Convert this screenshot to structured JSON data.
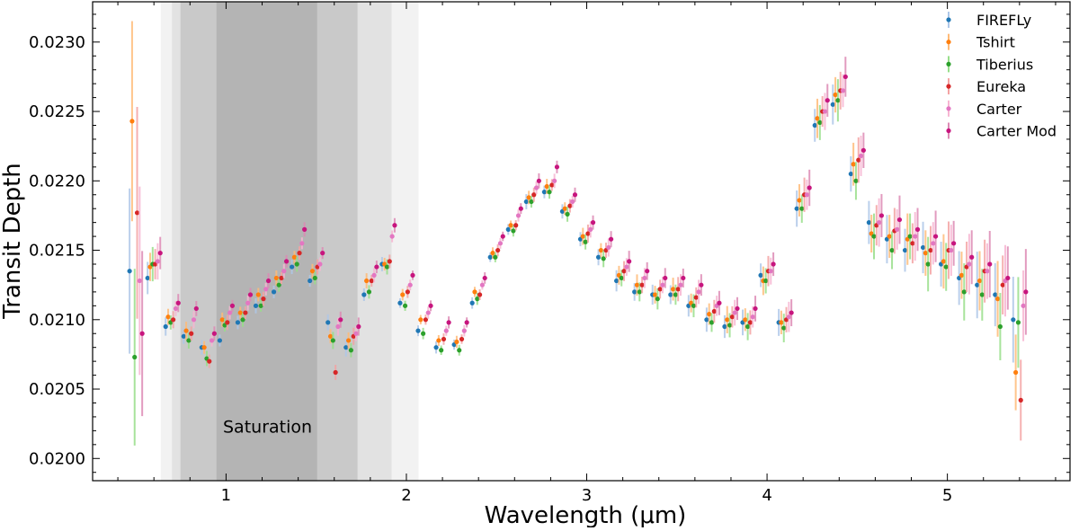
{
  "chart_data": {
    "type": "scatter",
    "title": "",
    "xlabel": "Wavelength (μm)",
    "ylabel": "Transit Depth",
    "xlim": [
      0.26,
      5.68
    ],
    "ylim": [
      0.01984,
      0.02329
    ],
    "xticks": [
      1,
      2,
      3,
      4,
      5
    ],
    "xtick_labels": [
      "1",
      "2",
      "3",
      "4",
      "5"
    ],
    "yticks": [
      0.02,
      0.0205,
      0.021,
      0.0215,
      0.022,
      0.0225,
      0.023
    ],
    "ytick_labels": [
      "0.0200",
      "0.0205",
      "0.0210",
      "0.0215",
      "0.0220",
      "0.0225",
      "0.0230"
    ],
    "grid": false,
    "legend_position": "top-right",
    "annotation": {
      "text": "Saturation",
      "x": 1.23,
      "y": 0.02023
    },
    "shaded_regions": [
      {
        "x0": 0.638,
        "x1": 2.068,
        "color": "#f2f2f2"
      },
      {
        "x0": 0.7,
        "x1": 1.918,
        "color": "#e2e2e2"
      },
      {
        "x0": 0.747,
        "x1": 1.729,
        "color": "#c9c9c9"
      },
      {
        "x0": 0.947,
        "x1": 1.505,
        "color": "#b4b4b4"
      }
    ],
    "x": [
      0.5,
      0.6,
      0.7,
      0.8,
      0.9,
      1.0,
      1.1,
      1.2,
      1.3,
      1.4,
      1.5,
      1.6,
      1.7,
      1.8,
      1.9,
      2.0,
      2.1,
      2.2,
      2.3,
      2.4,
      2.5,
      2.6,
      2.7,
      2.8,
      2.9,
      3.0,
      3.1,
      3.2,
      3.3,
      3.4,
      3.5,
      3.6,
      3.7,
      3.8,
      3.9,
      4.0,
      4.1,
      4.2,
      4.3,
      4.4,
      4.5,
      4.6,
      4.7,
      4.8,
      4.9,
      5.0,
      5.1,
      5.2,
      5.3,
      5.4
    ],
    "yerr": [
      0.0007,
      0.00012,
      6e-05,
      6e-05,
      5e-05,
      5e-05,
      5e-05,
      5e-05,
      5e-05,
      5e-05,
      5e-05,
      6e-05,
      6e-05,
      5e-05,
      5e-05,
      4e-05,
      4e-05,
      4e-05,
      4e-05,
      4e-05,
      4e-05,
      4e-05,
      5e-05,
      5e-05,
      5e-05,
      6e-05,
      6e-05,
      7e-05,
      7e-05,
      7e-05,
      8e-05,
      8e-05,
      8e-05,
      9e-05,
      9e-05,
      0.0001,
      0.0001,
      0.00012,
      0.00013,
      0.00014,
      0.00015,
      0.00016,
      0.00016,
      0.00017,
      0.00018,
      0.00019,
      0.0002,
      0.00022,
      0.00025,
      0.0003
    ],
    "series": [
      {
        "name": "FIREFLy",
        "color": "#1f77b4",
        "errcolor": "#aec7e8",
        "values": [
          0.02135,
          0.0213,
          0.02095,
          0.02088,
          0.0208,
          0.02085,
          0.02098,
          0.0211,
          0.0212,
          0.02138,
          0.02128,
          0.02098,
          0.0208,
          0.02118,
          0.0214,
          0.02112,
          0.02092,
          0.0208,
          0.02082,
          0.02112,
          0.02145,
          0.02165,
          0.02185,
          0.02192,
          0.02178,
          0.02158,
          0.02145,
          0.02128,
          0.0212,
          0.02118,
          0.02118,
          0.0211,
          0.021,
          0.02095,
          0.02098,
          0.02132,
          0.02098,
          0.0218,
          0.0224,
          0.02255,
          0.02205,
          0.0217,
          0.02158,
          0.0215,
          0.02152,
          0.0214,
          0.0213,
          0.02125,
          0.02118,
          0.021
        ]
      },
      {
        "name": "Tshirt",
        "color": "#ff7f0e",
        "errcolor": "#ffbb78",
        "values": [
          0.02243,
          0.02138,
          0.02102,
          0.02092,
          0.0208,
          0.021,
          0.02105,
          0.02118,
          0.0213,
          0.02145,
          0.02135,
          0.02088,
          0.02085,
          0.02128,
          0.0214,
          0.02118,
          0.021,
          0.02085,
          0.02084,
          0.0212,
          0.02148,
          0.02168,
          0.02188,
          0.02196,
          0.0218,
          0.0216,
          0.0215,
          0.02132,
          0.02125,
          0.02118,
          0.02122,
          0.02112,
          0.02104,
          0.021,
          0.021,
          0.02128,
          0.02098,
          0.02186,
          0.02245,
          0.02262,
          0.02212,
          0.02162,
          0.0216,
          0.02158,
          0.02148,
          0.02142,
          0.02132,
          0.02128,
          0.02115,
          0.02062
        ]
      },
      {
        "name": "Tiberius",
        "color": "#2ca02c",
        "errcolor": "#98df8a",
        "values": [
          0.02073,
          0.0214,
          0.02098,
          0.02085,
          0.02072,
          0.02096,
          0.021,
          0.0211,
          0.02125,
          0.0214,
          0.0213,
          0.02085,
          0.02078,
          0.0212,
          0.02138,
          0.0211,
          0.0209,
          0.02078,
          0.02078,
          0.02115,
          0.02145,
          0.02164,
          0.02185,
          0.02192,
          0.02176,
          0.02156,
          0.02144,
          0.0213,
          0.0212,
          0.02115,
          0.02118,
          0.0211,
          0.02098,
          0.02096,
          0.02095,
          0.02128,
          0.02094,
          0.0218,
          0.02242,
          0.02258,
          0.022,
          0.0216,
          0.0215,
          0.0216,
          0.0214,
          0.02138,
          0.0212,
          0.02118,
          0.02095,
          0.02098
        ]
      },
      {
        "name": "Eureka",
        "color": "#d62728",
        "errcolor": "#f4a3a3",
        "values": [
          0.02177,
          0.0214,
          0.021,
          0.0209,
          0.0207,
          0.02098,
          0.02105,
          0.02115,
          0.0213,
          0.02148,
          0.02138,
          0.02062,
          0.02088,
          0.02128,
          0.02142,
          0.0212,
          0.021,
          0.02086,
          0.02086,
          0.02118,
          0.0215,
          0.02168,
          0.0219,
          0.02197,
          0.02182,
          0.02162,
          0.0215,
          0.02135,
          0.02125,
          0.02122,
          0.02122,
          0.02116,
          0.02106,
          0.02102,
          0.02098,
          0.02135,
          0.021,
          0.0219,
          0.0225,
          0.02265,
          0.02215,
          0.02168,
          0.02164,
          0.02155,
          0.0215,
          0.0215,
          0.02138,
          0.02135,
          0.02125,
          0.02042
        ]
      },
      {
        "name": "Carter",
        "color": "#e377c2",
        "errcolor": "#f7b6d2",
        "values": [
          0.02128,
          0.02142,
          0.02108,
          0.021,
          0.02085,
          0.02105,
          0.02112,
          0.02122,
          0.02135,
          0.02155,
          0.0214,
          0.02095,
          0.0209,
          0.02132,
          0.0216,
          0.02125,
          0.02105,
          0.02092,
          0.02092,
          0.02125,
          0.02155,
          0.02175,
          0.02195,
          0.022,
          0.02185,
          0.02165,
          0.02152,
          0.02138,
          0.0213,
          0.02125,
          0.02125,
          0.0212,
          0.0211,
          0.02105,
          0.02102,
          0.02135,
          0.02102,
          0.0219,
          0.0225,
          0.02265,
          0.02218,
          0.0217,
          0.02165,
          0.0216,
          0.02155,
          0.0215,
          0.0214,
          0.02135,
          0.02128,
          0.0211
        ]
      },
      {
        "name": "Carter Mod",
        "color": "#c7157e",
        "errcolor": "#dd8ab5",
        "values": [
          0.0209,
          0.02148,
          0.02112,
          0.02108,
          0.0209,
          0.0211,
          0.02118,
          0.02128,
          0.02142,
          0.02165,
          0.02148,
          0.021,
          0.02095,
          0.02138,
          0.02168,
          0.02132,
          0.0211,
          0.02098,
          0.02098,
          0.0213,
          0.0216,
          0.0218,
          0.022,
          0.0221,
          0.0219,
          0.0217,
          0.02158,
          0.02142,
          0.02135,
          0.0213,
          0.0213,
          0.02125,
          0.02112,
          0.02108,
          0.02108,
          0.0214,
          0.02105,
          0.02195,
          0.02258,
          0.02275,
          0.02222,
          0.02175,
          0.02172,
          0.02165,
          0.0216,
          0.02155,
          0.02145,
          0.0214,
          0.0213,
          0.0212
        ]
      }
    ]
  }
}
